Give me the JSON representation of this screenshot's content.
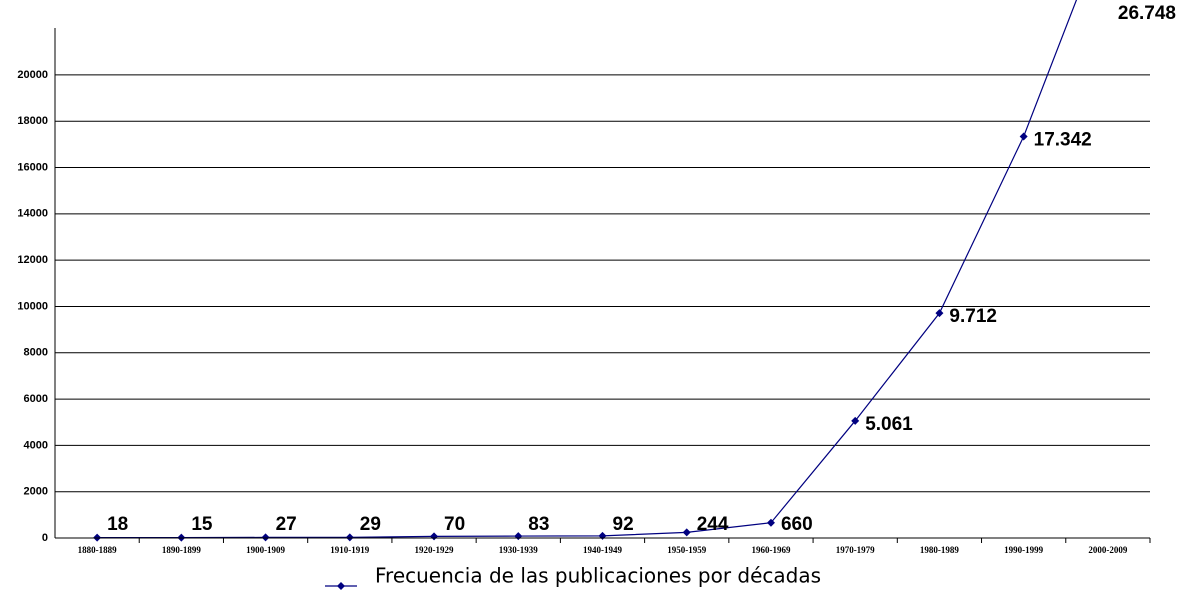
{
  "chart_data": {
    "type": "line",
    "categories": [
      "1880-1889",
      "1890-1899",
      "1900-1909",
      "1910-1919",
      "1920-1929",
      "1930-1939",
      "1940-1949",
      "1950-1959",
      "1960-1969",
      "1970-1979",
      "1980-1989",
      "1990-1999",
      "2000-2009"
    ],
    "series": [
      {
        "name": "Frecuencia de las publicaciones por décadas",
        "color": "#000080",
        "values": [
          18,
          15,
          27,
          29,
          70,
          83,
          92,
          244,
          660,
          5061,
          9712,
          17342,
          26748
        ],
        "value_labels": [
          "18",
          "15",
          "27",
          "29",
          "70",
          "83",
          "92",
          "244",
          "660",
          "5.061",
          "9.712",
          "17.342",
          "26.748"
        ]
      }
    ],
    "ylim": [
      0,
      22000
    ],
    "yticks": [
      0,
      2000,
      4000,
      6000,
      8000,
      10000,
      12000,
      14000,
      16000,
      18000,
      20000
    ],
    "grid": true,
    "legend": "bottom"
  }
}
